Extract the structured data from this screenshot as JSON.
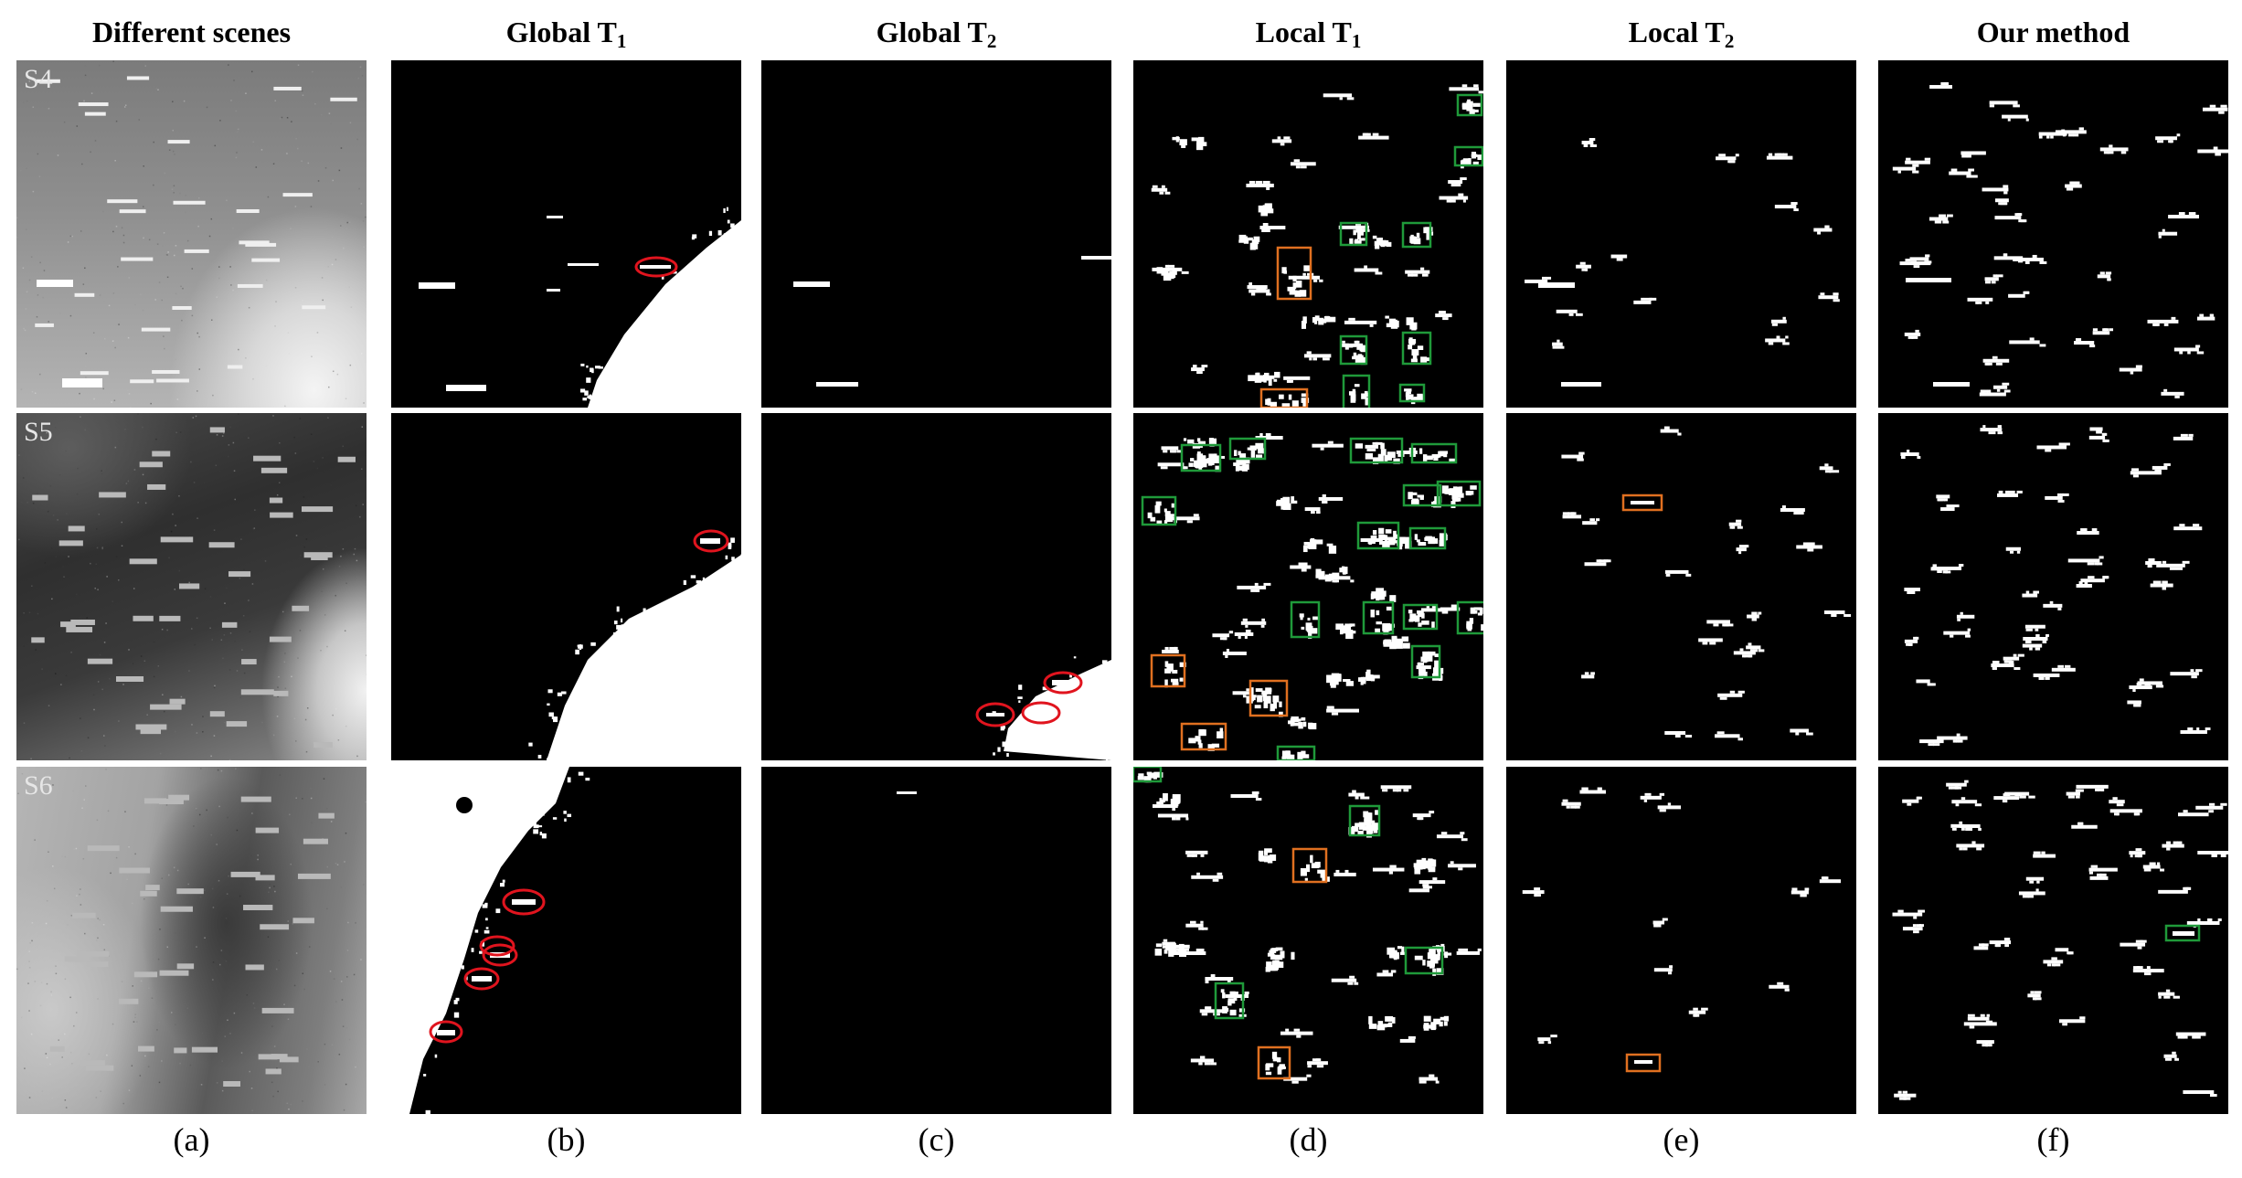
{
  "columns": [
    {
      "id": "a",
      "header": "Different scenes",
      "sub": "",
      "caption": "(a)"
    },
    {
      "id": "b",
      "header": "Global T",
      "sub": "1",
      "caption": "(b)"
    },
    {
      "id": "c",
      "header": "Global T",
      "sub": "2",
      "caption": "(c)"
    },
    {
      "id": "d",
      "header": "Local T",
      "sub": "1",
      "caption": "(d)"
    },
    {
      "id": "e",
      "header": "Local T",
      "sub": "2",
      "caption": "(e)"
    },
    {
      "id": "f",
      "header": "Our method",
      "sub": "",
      "caption": "(f)"
    }
  ],
  "rows": [
    {
      "id": "s4",
      "label": "S4"
    },
    {
      "id": "s5",
      "label": "S5"
    },
    {
      "id": "s6",
      "label": "S6"
    }
  ],
  "annotation_colors": {
    "missed": "#e0141e",
    "false_positive": "#1f9a3a",
    "fragmented": "#e07020"
  }
}
